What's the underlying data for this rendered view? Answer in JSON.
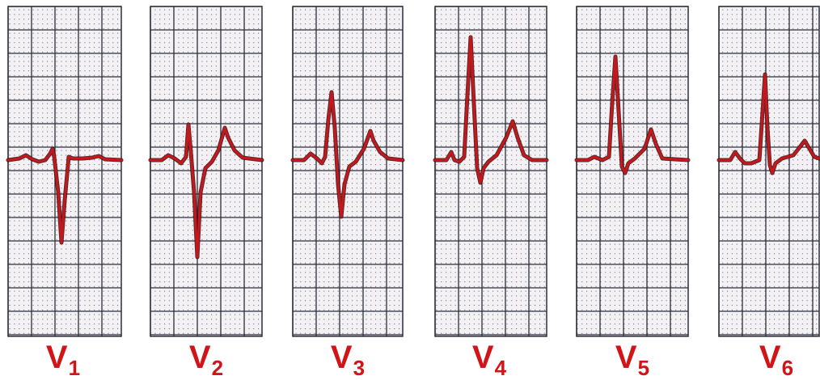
{
  "figure": {
    "leads": [
      {
        "id": "V1",
        "letter": "V",
        "number": "1"
      },
      {
        "id": "V2",
        "letter": "V",
        "number": "2"
      },
      {
        "id": "V3",
        "letter": "V",
        "number": "3"
      },
      {
        "id": "V4",
        "letter": "V",
        "number": "4"
      },
      {
        "id": "V5",
        "letter": "V",
        "number": "5"
      },
      {
        "id": "V6",
        "letter": "V",
        "number": "6"
      }
    ],
    "colors": {
      "trace": "#c8161d",
      "trace_shadow": "#3a0a0a",
      "grid_major": "#2a2f3a",
      "grid_minor": "#6f7480",
      "paper": "#f4f1f4",
      "label": "#d01418"
    }
  }
}
